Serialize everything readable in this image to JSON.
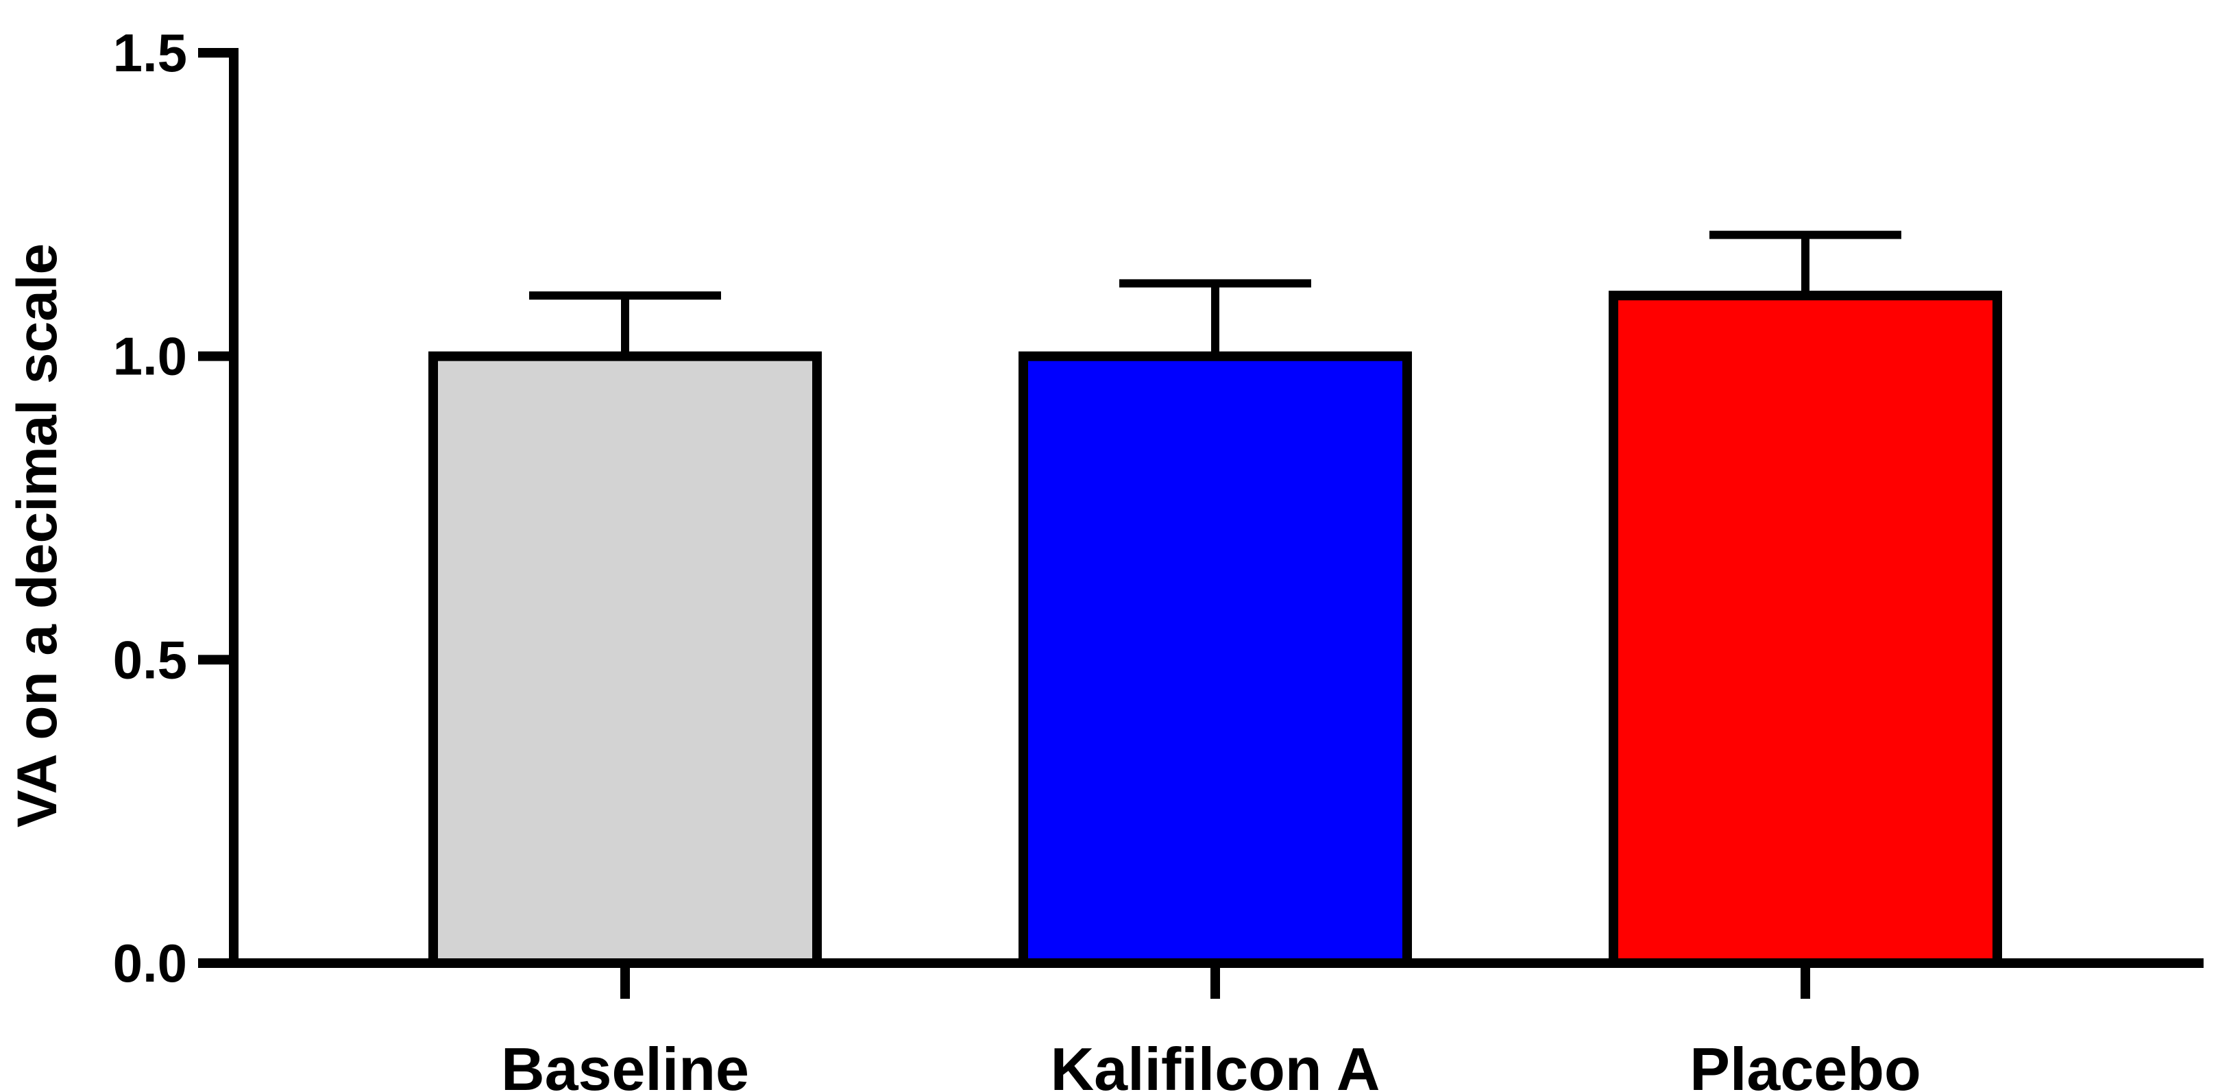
{
  "chart_data": {
    "type": "bar",
    "title": "",
    "xlabel": "",
    "ylabel": "VA on a decimal scale",
    "ylim": [
      0,
      1.5
    ],
    "yticks": [
      0.0,
      0.5,
      1.0,
      1.5
    ],
    "ytick_labels": [
      "0.0",
      "0.5",
      "1.0",
      "1.5"
    ],
    "categories": [
      "Baseline",
      "Kalifilcon A",
      "Placebo"
    ],
    "values": [
      1.0,
      1.0,
      1.1
    ],
    "error_upper": [
      0.1,
      0.12,
      0.1
    ],
    "colors": [
      "#d3d3d3",
      "#0000ff",
      "#ff0000"
    ],
    "grid": false,
    "legend": "none"
  }
}
